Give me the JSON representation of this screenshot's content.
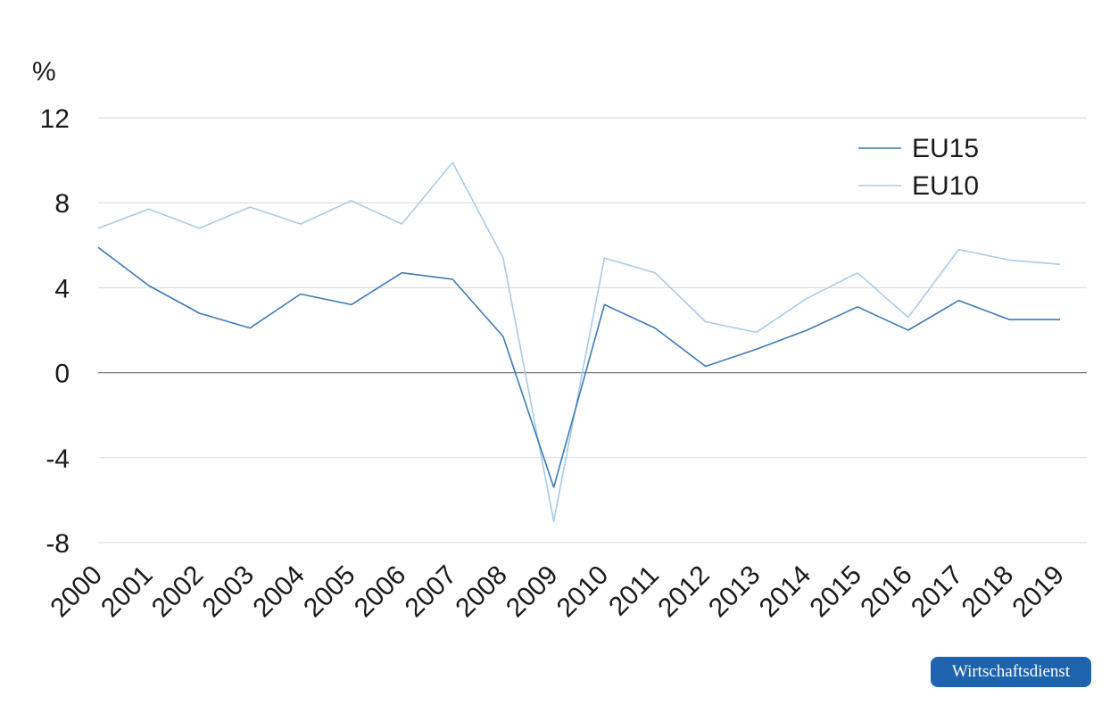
{
  "chart_data": {
    "type": "line",
    "ylabel": "%",
    "xlabel": "",
    "title": "",
    "ylim": [
      -8,
      12
    ],
    "yticks": [
      "12",
      "8",
      "4",
      "0",
      "-4",
      "-8"
    ],
    "ytick_values": [
      12,
      8,
      4,
      0,
      -4,
      -8
    ],
    "categories": [
      "2000",
      "2001",
      "2002",
      "2003",
      "2004",
      "2005",
      "2006",
      "2007",
      "2008",
      "2009",
      "2010",
      "2011",
      "2012",
      "2013",
      "2014",
      "2015",
      "2016",
      "2017",
      "2018",
      "2019"
    ],
    "series": [
      {
        "name": "EU15",
        "color": "#3d7ab8",
        "values": [
          5.9,
          4.1,
          2.8,
          2.1,
          3.7,
          3.2,
          4.7,
          4.4,
          1.7,
          -5.4,
          3.2,
          2.1,
          0.3,
          1.1,
          2.0,
          3.1,
          2.0,
          3.4,
          2.5,
          2.5
        ]
      },
      {
        "name": "EU10",
        "color": "#a9cbe6",
        "values": [
          6.8,
          7.7,
          6.8,
          7.8,
          7.0,
          8.1,
          7.0,
          9.9,
          5.4,
          -7.0,
          5.4,
          4.7,
          2.4,
          1.9,
          3.5,
          4.7,
          2.6,
          5.8,
          5.3,
          5.1
        ]
      }
    ],
    "legend_position": "top-right",
    "grid": true
  },
  "brand": {
    "label": "Wirtschaftsdienst"
  }
}
